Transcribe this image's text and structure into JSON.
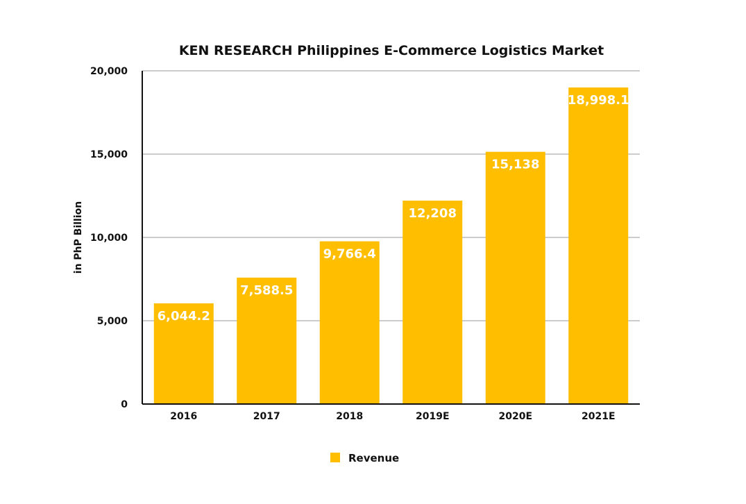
{
  "chart_data": {
    "type": "bar",
    "title": "KEN RESEARCH Philippines E-Commerce Logistics Market",
    "xlabel": "",
    "ylabel": "in PhP Billion",
    "categories": [
      "2016",
      "2017",
      "2018",
      "2019E",
      "2020E",
      "2021E"
    ],
    "series": [
      {
        "name": "Revenue",
        "values": [
          6044.2,
          7588.5,
          9766.4,
          12208,
          15138,
          18998.1
        ],
        "data_labels": [
          "6,044.2",
          "7,588.5",
          "9,766.4",
          "12,208",
          "15,138",
          "18,998.1"
        ],
        "color": "#FFBE00"
      }
    ],
    "ylim": [
      0,
      20000
    ],
    "y_ticks": [
      0,
      5000,
      10000,
      15000,
      20000
    ],
    "y_tick_labels": [
      "0",
      "5,000",
      "10,000",
      "15,000",
      "20,000"
    ],
    "grid": true,
    "grid_color": "#bbbbbb",
    "legend_position": "bottom-center"
  }
}
